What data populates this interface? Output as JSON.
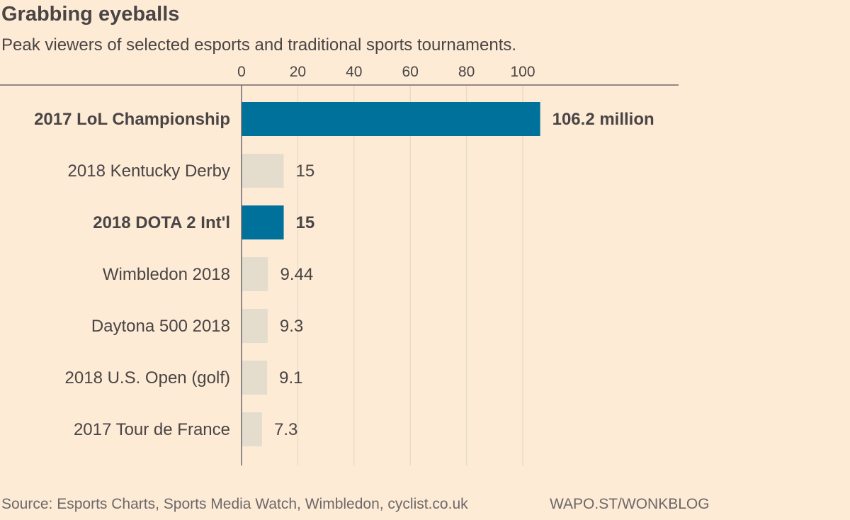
{
  "title": "Grabbing eyeballs",
  "subtitle": "Peak viewers of selected esports and traditional sports tournaments.",
  "footer": {
    "source": "Source: Esports Charts, Sports Media Watch, Wimbledon, cyclist.co.uk",
    "credit": "WAPO.ST/WONKBLOG"
  },
  "colors": {
    "background": "#fdebd6",
    "highlight_bar": "#00719a",
    "muted_bar": "#e4ddce",
    "text": "#4a4545",
    "gridline": "#e9dcc7",
    "axis": "#6f6b6b"
  },
  "chart_data": {
    "type": "bar",
    "orientation": "horizontal",
    "title": "Grabbing eyeballs",
    "subtitle": "Peak viewers of selected esports and traditional sports tournaments.",
    "xlabel": "",
    "ylabel": "",
    "units": "million",
    "xlim": [
      0,
      106.2
    ],
    "xticks": [
      0,
      20,
      40,
      60,
      80,
      100
    ],
    "tick_labels": [
      "0",
      "20",
      "40",
      "60",
      "80",
      "100"
    ],
    "grid": true,
    "categories": [
      "2017 LoL Championship",
      "2018 Kentucky Derby",
      "2018 DOTA 2 Int'l",
      "Wimbledon 2018",
      "Daytona 500 2018",
      "2018 U.S. Open (golf)",
      "2017 Tour de France"
    ],
    "values": [
      106.2,
      15,
      15,
      9.44,
      9.3,
      9.1,
      7.3
    ],
    "value_labels": [
      "106.2 million",
      "15",
      "15",
      "9.44",
      "9.3",
      "9.1",
      "7.3"
    ],
    "highlighted": [
      true,
      false,
      true,
      false,
      false,
      false,
      false
    ]
  }
}
